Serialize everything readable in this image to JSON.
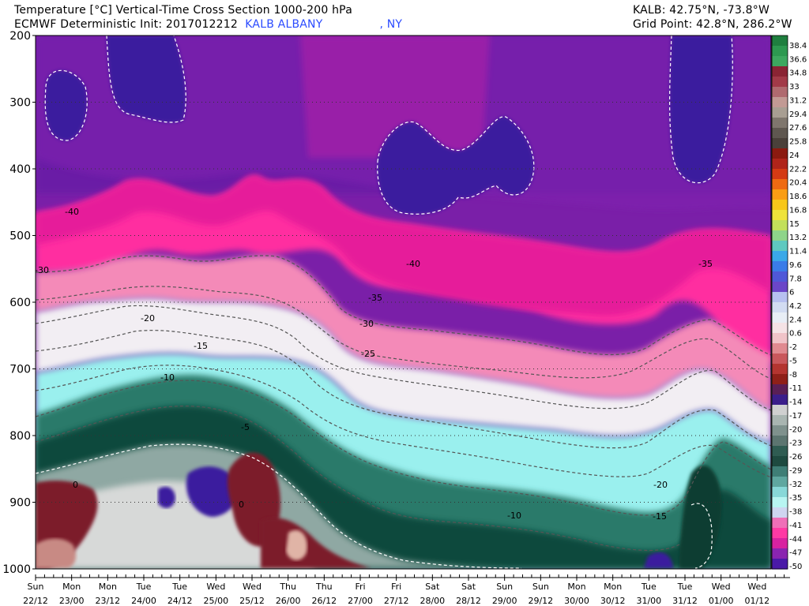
{
  "header": {
    "title": "Temperature [°C] Vertical-Time Cross Section 1000-200 hPa",
    "model_prefix": "ECMWF Deterministic Init: 2017012212",
    "station_name": "KALB ALBANY",
    "station_state": ", NY",
    "station_coords": "KALB: 42.75°N, -73.8°W",
    "grid_point": "Grid Point: 42.8°N, 286.2°W"
  },
  "chart_data": {
    "type": "heatmap",
    "variable": "Temperature [°C]",
    "y_axis": {
      "scale": "pressure (inverted)",
      "ylim": [
        1000,
        200
      ],
      "ticks": [
        "200",
        "300",
        "400",
        "500",
        "600",
        "700",
        "800",
        "900",
        "1000"
      ]
    },
    "x_axis": {
      "ticks": [
        {
          "day": "Sun",
          "date": "22/12"
        },
        {
          "day": "Mon",
          "date": "23/00"
        },
        {
          "day": "Mon",
          "date": "23/12"
        },
        {
          "day": "Tue",
          "date": "24/00"
        },
        {
          "day": "Tue",
          "date": "24/12"
        },
        {
          "day": "Wed",
          "date": "25/00"
        },
        {
          "day": "Wed",
          "date": "25/12"
        },
        {
          "day": "Thu",
          "date": "26/00"
        },
        {
          "day": "Thu",
          "date": "26/12"
        },
        {
          "day": "Fri",
          "date": "27/00"
        },
        {
          "day": "Fri",
          "date": "27/12"
        },
        {
          "day": "Sat",
          "date": "28/00"
        },
        {
          "day": "Sat",
          "date": "28/12"
        },
        {
          "day": "Sun",
          "date": "29/00"
        },
        {
          "day": "Sun",
          "date": "29/12"
        },
        {
          "day": "Mon",
          "date": "30/00"
        },
        {
          "day": "Mon",
          "date": "30/12"
        },
        {
          "day": "Tue",
          "date": "31/00"
        },
        {
          "day": "Tue",
          "date": "31/12"
        },
        {
          "day": "Wed",
          "date": "01/00"
        },
        {
          "day": "Wed",
          "date": "01/12"
        }
      ]
    },
    "contour_labels": [
      "-40",
      "-30",
      "-20",
      "-15",
      "-10",
      "-5",
      "0",
      "0",
      "-40",
      "-35",
      "-30",
      "-25",
      "-20",
      "-15",
      "-10",
      "-35"
    ],
    "colorbar": {
      "labels": [
        "38.4",
        "36.6",
        "34.8",
        "33",
        "31.2",
        "29.4",
        "27.6",
        "25.8",
        "24",
        "22.2",
        "20.4",
        "18.6",
        "16.8",
        "15",
        "13.2",
        "11.4",
        "9.6",
        "7.8",
        "6",
        "4.2",
        "2.4",
        "0.6",
        "-2",
        "-5",
        "-8",
        "-11",
        "-14",
        "-17",
        "-20",
        "-23",
        "-26",
        "-29",
        "-32",
        "-35",
        "-38",
        "-41",
        "-44",
        "-47",
        "-50"
      ],
      "colors": [
        "#1f7f3f",
        "#2d9950",
        "#3da85f",
        "#8a2434",
        "#a23a48",
        "#b06a6f",
        "#c29a94",
        "#a89e92",
        "#7f766d",
        "#5f5750",
        "#4a403a",
        "#8b1a10",
        "#b0241a",
        "#d43a14",
        "#ef6a12",
        "#fa9d14",
        "#f8c71a",
        "#efe33a",
        "#c3e05a",
        "#8ed48a",
        "#5fc9c0",
        "#3aa8e8",
        "#3a7ce8",
        "#4f58d8",
        "#6b46c8",
        "#b7c0f0",
        "#d2dcf2",
        "#e8eef6",
        "#f5e3e6",
        "#f0c3c8",
        "#e08a90",
        "#c9585c",
        "#b43530",
        "#8f2018",
        "#5a1f55",
        "#3b1e8a",
        "#d0d0d0",
        "#a9b5b1",
        "#7f918d",
        "#5c7570",
        "#2f5c52",
        "#1e4a40",
        "#3f7e76",
        "#5fa7a0",
        "#88d8d8",
        "#b8f5f2",
        "#cfd5f0",
        "#ef6fb8",
        "#ff3aa4",
        "#d822a0",
        "#8a24b0",
        "#4a1aa8"
      ]
    }
  }
}
